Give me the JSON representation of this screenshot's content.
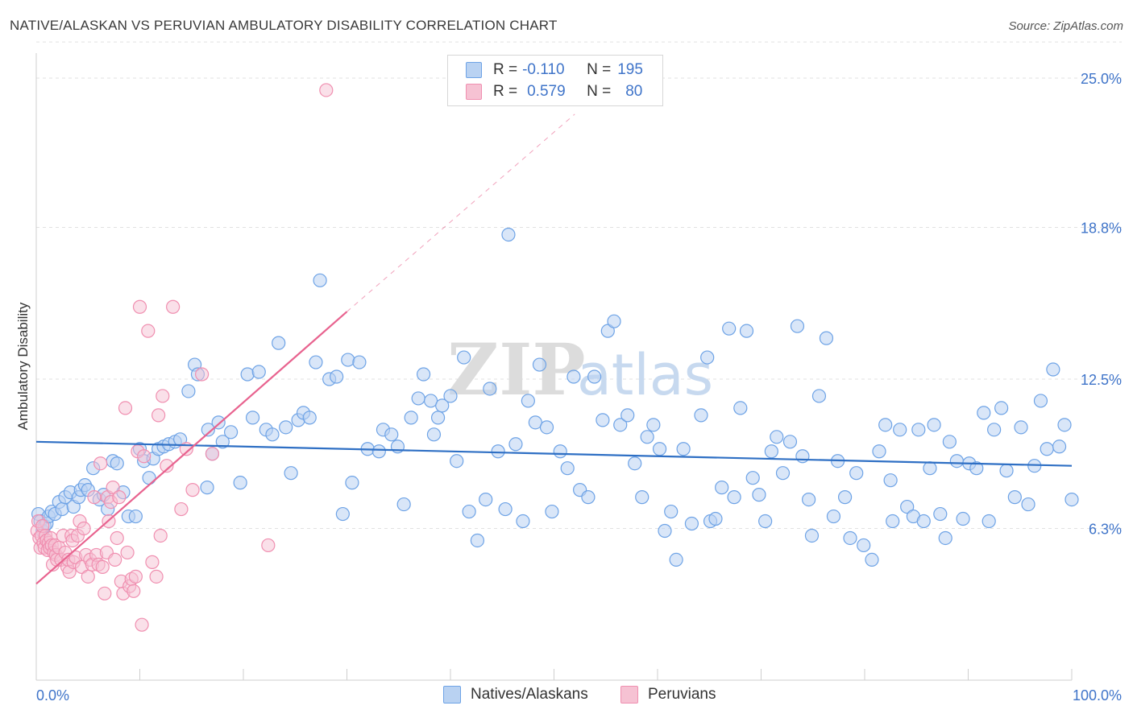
{
  "header": {
    "title": "NATIVE/ALASKAN VS PERUVIAN AMBULATORY DISABILITY CORRELATION CHART",
    "source": "Source: ZipAtlas.com"
  },
  "watermark": {
    "zip": "ZIP",
    "atlas": "atlas"
  },
  "legend": {
    "rows": [
      {
        "r_label": "R =",
        "r_value": "-0.110",
        "n_label": "N =",
        "n_value": "195",
        "color": "#6ea3e6"
      },
      {
        "r_label": "R =",
        "r_value": "0.579",
        "n_label": "N =",
        "n_value": "80",
        "color": "#f08fb0"
      }
    ]
  },
  "bottom_legend": {
    "items": [
      {
        "label": "Natives/Alaskans",
        "color": "#6ea3e6"
      },
      {
        "label": "Peruvians",
        "color": "#f08fb0"
      }
    ]
  },
  "colors": {
    "blue_fill": "#b9d2f2",
    "blue_stroke": "#6ea3e6",
    "blue_line": "#2e6fc4",
    "pink_fill": "#f6c2d3",
    "pink_stroke": "#f08fb0",
    "pink_line": "#e8638f",
    "axis_text": "#3f74c9",
    "grid": "#e1e1e1"
  },
  "chart_data": {
    "type": "scatter",
    "title": "NATIVE/ALASKAN VS PERUVIAN AMBULATORY DISABILITY CORRELATION CHART",
    "xlabel": "",
    "ylabel": "Ambulatory Disability",
    "xlim": [
      0,
      100
    ],
    "ylim": [
      0,
      26.5
    ],
    "x_tick_labels": [
      "0.0%",
      "100.0%"
    ],
    "y_ticks": [
      6.3,
      12.5,
      18.8,
      25.0
    ],
    "y_tick_labels": [
      "6.3%",
      "12.5%",
      "18.8%",
      "25.0%"
    ],
    "grid": true,
    "legend_position": "top-center",
    "series": [
      {
        "name": "Natives/Alaskans",
        "r": -0.11,
        "n": 195,
        "trend": {
          "x": [
            0,
            100
          ],
          "y": [
            9.9,
            8.9
          ]
        },
        "points": [
          [
            0.2,
            6.9
          ],
          [
            0.4,
            6.6
          ],
          [
            0.6,
            6.2
          ],
          [
            0.8,
            6.4
          ],
          [
            1.0,
            6.5
          ],
          [
            1.2,
            6.8
          ],
          [
            1.5,
            7.0
          ],
          [
            1.8,
            6.9
          ],
          [
            2.2,
            7.4
          ],
          [
            2.5,
            7.1
          ],
          [
            2.8,
            7.6
          ],
          [
            3.3,
            7.8
          ],
          [
            3.6,
            7.2
          ],
          [
            4.1,
            7.6
          ],
          [
            4.3,
            7.9
          ],
          [
            4.7,
            8.1
          ],
          [
            5.0,
            7.9
          ],
          [
            5.5,
            8.8
          ],
          [
            6.1,
            7.5
          ],
          [
            6.5,
            7.7
          ],
          [
            6.9,
            7.1
          ],
          [
            7.4,
            9.1
          ],
          [
            7.8,
            9.0
          ],
          [
            8.4,
            7.8
          ],
          [
            8.9,
            6.8
          ],
          [
            9.6,
            6.8
          ],
          [
            10.0,
            9.6
          ],
          [
            10.4,
            9.1
          ],
          [
            10.9,
            8.4
          ],
          [
            11.3,
            9.2
          ],
          [
            11.8,
            9.6
          ],
          [
            12.3,
            9.7
          ],
          [
            12.8,
            9.8
          ],
          [
            13.4,
            9.9
          ],
          [
            13.9,
            10.0
          ],
          [
            14.7,
            12.0
          ],
          [
            15.3,
            13.1
          ],
          [
            15.6,
            12.7
          ],
          [
            16.5,
            8.0
          ],
          [
            16.6,
            10.4
          ],
          [
            17.0,
            9.4
          ],
          [
            17.6,
            10.7
          ],
          [
            18.0,
            9.9
          ],
          [
            18.8,
            10.3
          ],
          [
            19.7,
            8.2
          ],
          [
            20.4,
            12.7
          ],
          [
            20.9,
            10.9
          ],
          [
            21.5,
            12.8
          ],
          [
            22.2,
            10.4
          ],
          [
            22.8,
            10.2
          ],
          [
            23.4,
            14.0
          ],
          [
            24.1,
            10.5
          ],
          [
            24.6,
            8.6
          ],
          [
            25.3,
            10.8
          ],
          [
            25.8,
            11.1
          ],
          [
            26.4,
            10.9
          ],
          [
            27.0,
            13.2
          ],
          [
            27.4,
            16.6
          ],
          [
            28.3,
            12.5
          ],
          [
            29.0,
            12.6
          ],
          [
            29.6,
            6.9
          ],
          [
            30.1,
            13.3
          ],
          [
            30.5,
            8.2
          ],
          [
            31.2,
            13.2
          ],
          [
            32.0,
            9.6
          ],
          [
            33.1,
            9.5
          ],
          [
            33.5,
            10.4
          ],
          [
            34.3,
            10.2
          ],
          [
            34.9,
            9.7
          ],
          [
            35.5,
            7.3
          ],
          [
            36.2,
            10.9
          ],
          [
            36.9,
            11.7
          ],
          [
            37.4,
            12.7
          ],
          [
            38.1,
            11.6
          ],
          [
            38.4,
            10.2
          ],
          [
            38.8,
            10.9
          ],
          [
            39.2,
            11.4
          ],
          [
            40.0,
            11.8
          ],
          [
            40.6,
            9.1
          ],
          [
            41.3,
            13.4
          ],
          [
            41.8,
            7.0
          ],
          [
            42.6,
            5.8
          ],
          [
            43.4,
            7.5
          ],
          [
            43.8,
            12.1
          ],
          [
            44.6,
            9.5
          ],
          [
            45.3,
            7.1
          ],
          [
            45.6,
            18.5
          ],
          [
            46.3,
            9.8
          ],
          [
            47.0,
            6.6
          ],
          [
            47.5,
            11.6
          ],
          [
            48.2,
            10.7
          ],
          [
            48.6,
            13.1
          ],
          [
            49.3,
            10.5
          ],
          [
            49.8,
            7.0
          ],
          [
            50.6,
            9.5
          ],
          [
            51.3,
            8.8
          ],
          [
            51.9,
            12.6
          ],
          [
            52.5,
            7.9
          ],
          [
            53.3,
            7.6
          ],
          [
            53.9,
            12.6
          ],
          [
            54.7,
            10.8
          ],
          [
            55.2,
            14.5
          ],
          [
            55.8,
            14.9
          ],
          [
            56.4,
            10.6
          ],
          [
            57.1,
            11.0
          ],
          [
            57.8,
            9.0
          ],
          [
            58.5,
            7.6
          ],
          [
            59.0,
            10.1
          ],
          [
            59.6,
            10.6
          ],
          [
            60.2,
            9.6
          ],
          [
            60.7,
            6.2
          ],
          [
            61.3,
            7.0
          ],
          [
            61.8,
            5.0
          ],
          [
            62.5,
            9.6
          ],
          [
            63.3,
            6.5
          ],
          [
            64.2,
            11.0
          ],
          [
            64.8,
            13.4
          ],
          [
            65.1,
            6.6
          ],
          [
            65.6,
            6.7
          ],
          [
            66.2,
            8.0
          ],
          [
            66.9,
            14.6
          ],
          [
            67.4,
            7.6
          ],
          [
            68.0,
            11.3
          ],
          [
            68.6,
            14.5
          ],
          [
            69.2,
            8.4
          ],
          [
            69.8,
            7.7
          ],
          [
            70.4,
            6.6
          ],
          [
            71.0,
            9.5
          ],
          [
            71.5,
            10.1
          ],
          [
            72.1,
            8.6
          ],
          [
            72.8,
            9.9
          ],
          [
            73.5,
            14.7
          ],
          [
            74.0,
            9.3
          ],
          [
            74.6,
            7.5
          ],
          [
            74.9,
            6.0
          ],
          [
            75.6,
            11.8
          ],
          [
            76.3,
            14.2
          ],
          [
            77.0,
            6.8
          ],
          [
            77.4,
            9.1
          ],
          [
            78.1,
            7.6
          ],
          [
            78.6,
            5.9
          ],
          [
            79.2,
            8.6
          ],
          [
            79.9,
            5.6
          ],
          [
            80.7,
            5.0
          ],
          [
            81.4,
            9.5
          ],
          [
            82.0,
            10.6
          ],
          [
            82.5,
            8.3
          ],
          [
            82.7,
            6.6
          ],
          [
            83.4,
            10.4
          ],
          [
            84.1,
            7.2
          ],
          [
            84.7,
            6.8
          ],
          [
            85.2,
            10.4
          ],
          [
            85.7,
            6.6
          ],
          [
            86.3,
            8.8
          ],
          [
            86.7,
            10.6
          ],
          [
            87.3,
            6.9
          ],
          [
            87.8,
            5.9
          ],
          [
            88.2,
            9.9
          ],
          [
            88.9,
            9.1
          ],
          [
            89.5,
            6.7
          ],
          [
            90.1,
            9.0
          ],
          [
            90.8,
            8.8
          ],
          [
            91.5,
            11.1
          ],
          [
            92.0,
            6.6
          ],
          [
            92.5,
            10.4
          ],
          [
            93.2,
            11.3
          ],
          [
            93.7,
            8.7
          ],
          [
            94.5,
            7.6
          ],
          [
            95.1,
            10.5
          ],
          [
            95.8,
            7.3
          ],
          [
            96.4,
            8.9
          ],
          [
            97.0,
            11.6
          ],
          [
            97.6,
            9.6
          ],
          [
            98.2,
            12.9
          ],
          [
            98.8,
            9.7
          ],
          [
            99.3,
            10.6
          ],
          [
            100.0,
            7.5
          ]
        ]
      },
      {
        "name": "Peruvians",
        "r": 0.579,
        "n": 80,
        "trend": {
          "x": [
            0,
            30
          ],
          "y": [
            4.0,
            15.3
          ]
        },
        "trend_extended": {
          "x": [
            30,
            52
          ],
          "y": [
            15.3,
            23.5
          ]
        },
        "points": [
          [
            0.1,
            6.2
          ],
          [
            0.2,
            6.6
          ],
          [
            0.3,
            5.9
          ],
          [
            0.4,
            5.5
          ],
          [
            0.5,
            6.0
          ],
          [
            0.6,
            6.4
          ],
          [
            0.7,
            5.7
          ],
          [
            0.8,
            5.5
          ],
          [
            0.9,
            6.0
          ],
          [
            1.0,
            5.8
          ],
          [
            1.1,
            5.4
          ],
          [
            1.2,
            5.7
          ],
          [
            1.3,
            5.5
          ],
          [
            1.4,
            5.9
          ],
          [
            1.5,
            5.6
          ],
          [
            1.6,
            4.8
          ],
          [
            1.7,
            5.3
          ],
          [
            1.8,
            5.6
          ],
          [
            1.9,
            5.2
          ],
          [
            2.0,
            5.0
          ],
          [
            2.2,
            5.5
          ],
          [
            2.4,
            5.0
          ],
          [
            2.6,
            6.0
          ],
          [
            2.8,
            5.3
          ],
          [
            3.0,
            4.7
          ],
          [
            3.1,
            5.0
          ],
          [
            3.2,
            4.5
          ],
          [
            3.4,
            6.0
          ],
          [
            3.5,
            5.8
          ],
          [
            3.6,
            4.9
          ],
          [
            3.8,
            5.1
          ],
          [
            4.0,
            6.0
          ],
          [
            4.2,
            6.6
          ],
          [
            4.4,
            4.7
          ],
          [
            4.6,
            6.3
          ],
          [
            4.8,
            5.2
          ],
          [
            5.0,
            4.3
          ],
          [
            5.2,
            5.0
          ],
          [
            5.4,
            4.8
          ],
          [
            5.6,
            7.6
          ],
          [
            5.8,
            5.2
          ],
          [
            6.0,
            4.8
          ],
          [
            6.2,
            9.0
          ],
          [
            6.4,
            4.7
          ],
          [
            6.6,
            3.6
          ],
          [
            6.8,
            5.3
          ],
          [
            6.9,
            7.6
          ],
          [
            7.0,
            6.6
          ],
          [
            7.2,
            7.4
          ],
          [
            7.4,
            8.0
          ],
          [
            7.6,
            5.0
          ],
          [
            7.8,
            5.9
          ],
          [
            8.0,
            7.6
          ],
          [
            8.2,
            4.1
          ],
          [
            8.4,
            3.6
          ],
          [
            8.6,
            11.3
          ],
          [
            8.8,
            5.3
          ],
          [
            9.0,
            3.9
          ],
          [
            9.2,
            4.2
          ],
          [
            9.4,
            3.7
          ],
          [
            9.6,
            4.3
          ],
          [
            9.8,
            9.5
          ],
          [
            10.0,
            15.5
          ],
          [
            10.2,
            2.3
          ],
          [
            10.4,
            9.3
          ],
          [
            10.8,
            14.5
          ],
          [
            11.2,
            4.9
          ],
          [
            11.6,
            4.3
          ],
          [
            11.8,
            11.0
          ],
          [
            12.0,
            6.0
          ],
          [
            12.2,
            11.8
          ],
          [
            12.6,
            8.9
          ],
          [
            13.2,
            15.5
          ],
          [
            14.0,
            7.1
          ],
          [
            14.5,
            9.6
          ],
          [
            15.1,
            7.9
          ],
          [
            16.0,
            12.7
          ],
          [
            17.0,
            9.4
          ],
          [
            22.4,
            5.6
          ],
          [
            28.0,
            24.5
          ]
        ]
      }
    ]
  }
}
